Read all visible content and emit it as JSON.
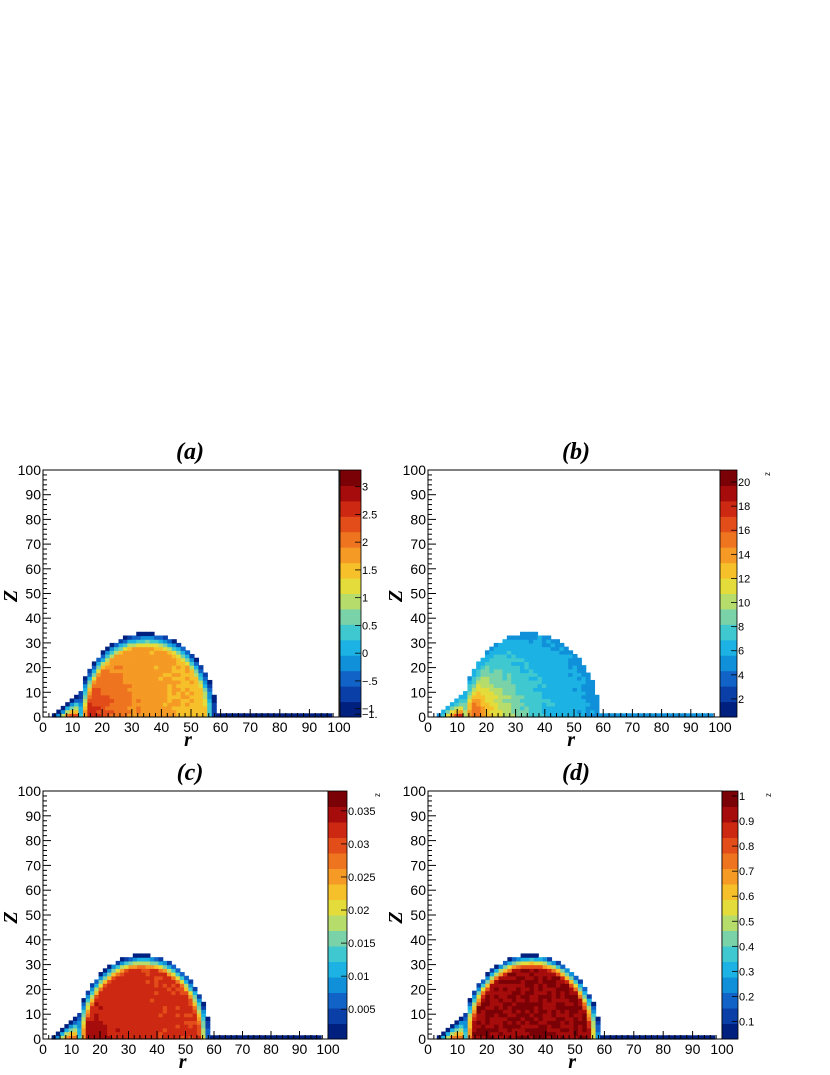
{
  "palette": [
    "#00207f",
    "#0a3fa8",
    "#1163c8",
    "#1190da",
    "#1cb3e4",
    "#3fc8d0",
    "#7ad2a8",
    "#b6dd6c",
    "#e3dc3a",
    "#f6c02a",
    "#f49a25",
    "#ee7420",
    "#e34d19",
    "#cc2812",
    "#a50c0b",
    "#7a0106"
  ],
  "chart_data": [
    {
      "type": "heatmap",
      "panel": "a",
      "title": "(a)",
      "xlabel": "r",
      "ylabel": "Z",
      "xlim": [
        0,
        100
      ],
      "ylim": [
        0,
        100
      ],
      "x_ticks": [
        "0",
        "10",
        "20",
        "30",
        "40",
        "50",
        "60",
        "70",
        "80",
        "90",
        "100"
      ],
      "y_ticks": [
        "0",
        "10",
        "20",
        "30",
        "40",
        "50",
        "60",
        "70",
        "80",
        "90",
        "100"
      ],
      "zlim": [
        -1.15,
        3.3
      ],
      "colorbar_ticks": [
        {
          "value": 3,
          "label": "3"
        },
        {
          "value": 2.5,
          "label": "2.5"
        },
        {
          "value": 2,
          "label": "2"
        },
        {
          "value": 1.5,
          "label": "1.5"
        },
        {
          "value": 1,
          "label": "1"
        },
        {
          "value": 0.5,
          "label": "0.5"
        },
        {
          "value": 0,
          "label": "0"
        },
        {
          "value": -0.5,
          "label": "−.5"
        },
        {
          "value": -1,
          "label": "−1"
        },
        {
          "value": -1.1,
          "label": "−1."
        }
      ],
      "colorbar_title": "",
      "region": {
        "center_r": 35,
        "radius_r": 23.5,
        "height_z": 34,
        "tail_to_r": 98
      },
      "field": {
        "rim": -1.1,
        "interior": 1.7,
        "hot_center": [
          10,
          1
        ],
        "hot_value": 3.2,
        "hot_spread": 12,
        "gradient": -0.008
      }
    },
    {
      "type": "heatmap",
      "panel": "b",
      "title": "(b)",
      "xlabel": "r",
      "ylabel": "Z",
      "xlim": [
        0,
        100
      ],
      "ylim": [
        0,
        100
      ],
      "x_ticks": [
        "0",
        "10",
        "20",
        "30",
        "40",
        "50",
        "60",
        "70",
        "80",
        "90",
        "100"
      ],
      "y_ticks": [
        "0",
        "10",
        "20",
        "30",
        "40",
        "50",
        "60",
        "70",
        "80",
        "90",
        "100"
      ],
      "zlim": [
        0.5,
        21
      ],
      "colorbar_ticks": [
        {
          "value": 20,
          "label": "20"
        },
        {
          "value": 18,
          "label": "18"
        },
        {
          "value": 16,
          "label": "16"
        },
        {
          "value": 14,
          "label": "14"
        },
        {
          "value": 12,
          "label": "12"
        },
        {
          "value": 10,
          "label": "10"
        },
        {
          "value": 8,
          "label": "8"
        },
        {
          "value": 6,
          "label": "6"
        },
        {
          "value": 4,
          "label": "4"
        },
        {
          "value": 2,
          "label": "2"
        }
      ],
      "colorbar_title": "z",
      "region": {
        "center_r": 35,
        "radius_r": 23.5,
        "height_z": 34,
        "tail_to_r": 98
      },
      "field": {
        "rim": 5.5,
        "interior": 5.0,
        "hot_center": [
          11,
          1
        ],
        "hot_value": 20.5,
        "hot_spread": 14,
        "gradient": 0
      }
    },
    {
      "type": "heatmap",
      "panel": "c",
      "title": "(c)",
      "xlabel": "r",
      "ylabel": "Z",
      "xlim": [
        0,
        100
      ],
      "ylim": [
        0,
        100
      ],
      "x_ticks": [
        "0",
        "10",
        "20",
        "30",
        "40",
        "50",
        "60",
        "70",
        "80",
        "90",
        "100"
      ],
      "y_ticks": [
        "0",
        "10",
        "20",
        "30",
        "40",
        "50",
        "60",
        "70",
        "80",
        "90",
        "100"
      ],
      "zlim": [
        0.0005,
        0.038
      ],
      "colorbar_ticks": [
        {
          "value": 0.035,
          "label": "0.035"
        },
        {
          "value": 0.03,
          "label": "0.03"
        },
        {
          "value": 0.025,
          "label": "0.025"
        },
        {
          "value": 0.02,
          "label": "0.02"
        },
        {
          "value": 0.015,
          "label": "0.015"
        },
        {
          "value": 0.01,
          "label": "0.01"
        },
        {
          "value": 0.005,
          "label": "0.005"
        }
      ],
      "colorbar_title": "z",
      "region": {
        "center_r": 35,
        "radius_r": 23.5,
        "height_z": 34,
        "tail_to_r": 98
      },
      "field": {
        "rim": 0.001,
        "interior": 0.031,
        "hot_center": [
          12,
          1
        ],
        "hot_value": 0.036,
        "hot_spread": 14,
        "gradient": -0.0003
      }
    },
    {
      "type": "heatmap",
      "panel": "d",
      "title": "(d)",
      "xlabel": "r",
      "ylabel": "Z",
      "xlim": [
        0,
        100
      ],
      "ylim": [
        0,
        100
      ],
      "x_ticks": [
        "0",
        "10",
        "20",
        "30",
        "40",
        "50",
        "60",
        "70",
        "80",
        "90",
        "100"
      ],
      "y_ticks": [
        "0",
        "10",
        "20",
        "30",
        "40",
        "50",
        "60",
        "70",
        "80",
        "90",
        "100"
      ],
      "zlim": [
        0.03,
        1.02
      ],
      "colorbar_ticks": [
        {
          "value": 1,
          "label": "1"
        },
        {
          "value": 0.9,
          "label": "0.9"
        },
        {
          "value": 0.8,
          "label": "0.8"
        },
        {
          "value": 0.7,
          "label": "0.7"
        },
        {
          "value": 0.6,
          "label": "0.6"
        },
        {
          "value": 0.5,
          "label": "0.5"
        },
        {
          "value": 0.4,
          "label": "0.4"
        },
        {
          "value": 0.3,
          "label": "0.3"
        },
        {
          "value": 0.2,
          "label": "0.2"
        },
        {
          "value": 0.1,
          "label": "0.1"
        }
      ],
      "colorbar_title": "z",
      "region": {
        "center_r": 35,
        "radius_r": 23.5,
        "height_z": 34,
        "tail_to_r": 98
      },
      "field": {
        "rim": 0.05,
        "interior": 0.96,
        "hot_center": [
          20,
          1
        ],
        "hot_value": 0.96,
        "hot_spread": 10,
        "gradient": 0
      }
    }
  ]
}
